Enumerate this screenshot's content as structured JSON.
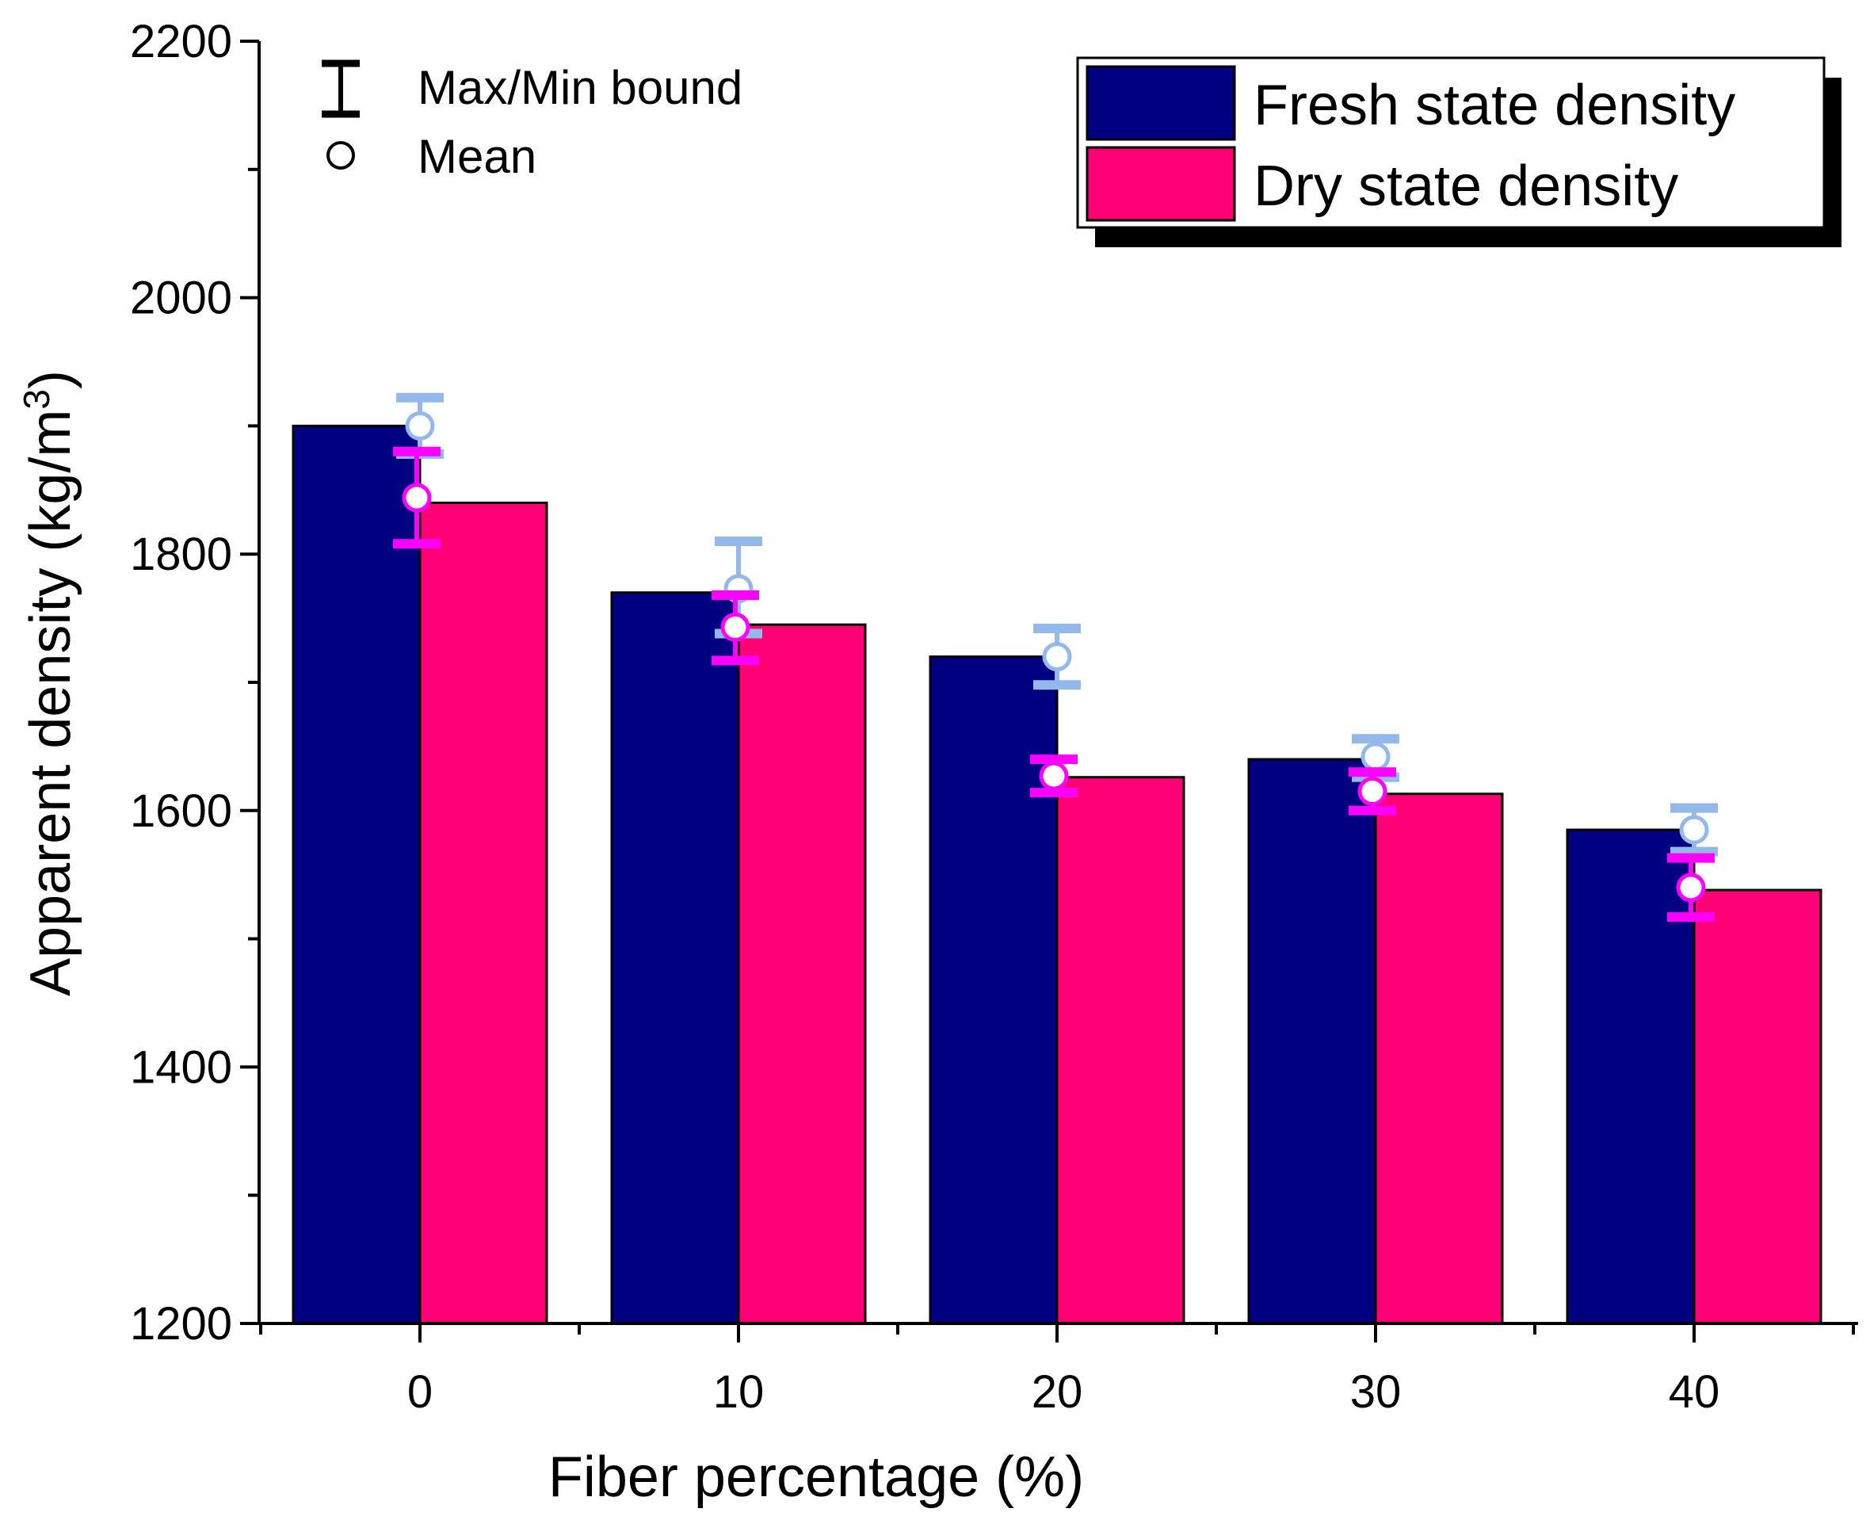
{
  "chart_data": {
    "type": "bar",
    "title": "",
    "xlabel": "Fiber percentage (%)",
    "ylabel": "Apparent density (kg/m",
    "ylabel_superscript": "3",
    "ylabel_close": ")",
    "categories": [
      "0",
      "10",
      "20",
      "30",
      "40"
    ],
    "ylim": [
      1200,
      2200
    ],
    "yticks": [
      "1200",
      "1400",
      "1600",
      "1800",
      "2000",
      "2200"
    ],
    "grid": false,
    "legend_position": "top-right",
    "series": [
      {
        "name": "Fresh state density",
        "color": "#000080",
        "error_color": "#93b8ea",
        "values": [
          1900,
          1770,
          1720,
          1640,
          1585
        ],
        "means": [
          1900,
          1773,
          1720,
          1642,
          1585
        ],
        "max": [
          1922,
          1810,
          1742,
          1656,
          1602
        ],
        "min": [
          1878,
          1738,
          1698,
          1626,
          1568
        ]
      },
      {
        "name": "Dry state density",
        "color": "#ff0077",
        "error_color": "#ff00ff",
        "values": [
          1840,
          1745,
          1626,
          1613,
          1538
        ],
        "means": [
          1844,
          1743,
          1627,
          1615,
          1540
        ],
        "max": [
          1880,
          1768,
          1640,
          1630,
          1563
        ],
        "min": [
          1808,
          1717,
          1614,
          1600,
          1517
        ]
      }
    ],
    "marker_legend": {
      "errorbar_label": "Max/Min bound",
      "mean_label": "Mean"
    }
  }
}
